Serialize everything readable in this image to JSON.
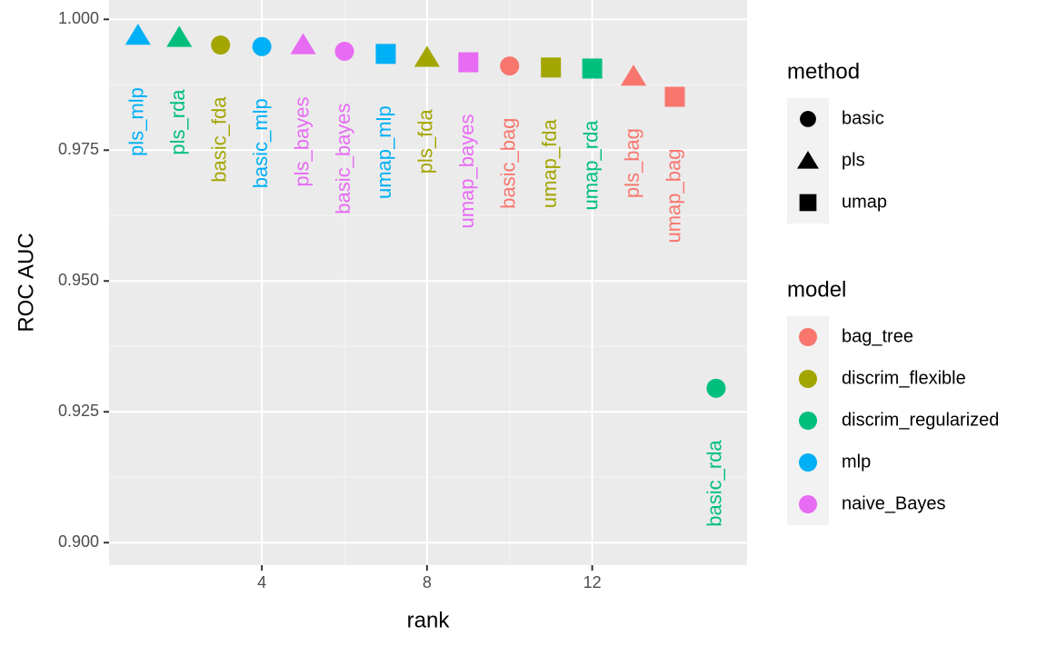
{
  "chart_data": {
    "type": "scatter",
    "x_label": "rank",
    "y_label": "ROC AUC",
    "xlim": [
      0.3,
      15.75
    ],
    "ylim": [
      0.8957,
      1.0037
    ],
    "xticks": [
      4,
      8,
      12
    ],
    "yticks": [
      {
        "value": 0.9,
        "label": "0.900"
      },
      {
        "value": 0.925,
        "label": "0.925"
      },
      {
        "value": 0.95,
        "label": "0.950"
      },
      {
        "value": 0.975,
        "label": "0.975"
      },
      {
        "value": 1,
        "label": "1.000"
      }
    ],
    "grid": true,
    "legends": [
      {
        "title": "method",
        "entries": [
          {
            "name": "basic",
            "shape": "circle"
          },
          {
            "name": "pls",
            "shape": "triangle"
          },
          {
            "name": "umap",
            "shape": "square"
          }
        ]
      },
      {
        "title": "model",
        "entries": [
          {
            "name": "bag_tree",
            "color": "#F8766D"
          },
          {
            "name": "discrim_flexible",
            "color": "#A3A500"
          },
          {
            "name": "discrim_regularized",
            "color": "#00BF7D"
          },
          {
            "name": "mlp",
            "color": "#00B0F6"
          },
          {
            "name": "naive_Bayes",
            "color": "#E76BF3"
          }
        ]
      }
    ],
    "points": [
      {
        "label": "pls_mlp",
        "method": "pls",
        "model": "mlp",
        "x": 1,
        "y": 0.9969
      },
      {
        "label": "pls_rda",
        "method": "pls",
        "model": "discrim_regularized",
        "x": 2,
        "y": 0.9965
      },
      {
        "label": "basic_fda",
        "method": "basic",
        "model": "discrim_flexible",
        "x": 3,
        "y": 0.9951
      },
      {
        "label": "basic_mlp",
        "method": "basic",
        "model": "mlp",
        "x": 4,
        "y": 0.9948
      },
      {
        "label": "pls_bayes",
        "method": "pls",
        "model": "naive_Bayes",
        "x": 5,
        "y": 0.9951
      },
      {
        "label": "basic_bayes",
        "method": "basic",
        "model": "naive_Bayes",
        "x": 6,
        "y": 0.9939
      },
      {
        "label": "umap_mlp",
        "method": "umap",
        "model": "mlp",
        "x": 7,
        "y": 0.9934
      },
      {
        "label": "pls_fda",
        "method": "pls",
        "model": "discrim_flexible",
        "x": 8,
        "y": 0.9927
      },
      {
        "label": "umap_bayes",
        "method": "umap",
        "model": "naive_Bayes",
        "x": 9,
        "y": 0.9918
      },
      {
        "label": "basic_bag",
        "method": "basic",
        "model": "bag_tree",
        "x": 10,
        "y": 0.9911
      },
      {
        "label": "umap_fda",
        "method": "umap",
        "model": "discrim_flexible",
        "x": 11,
        "y": 0.9908
      },
      {
        "label": "umap_rda",
        "method": "umap",
        "model": "discrim_regularized",
        "x": 12,
        "y": 0.9906
      },
      {
        "label": "pls_bag",
        "method": "pls",
        "model": "bag_tree",
        "x": 13,
        "y": 0.9891
      },
      {
        "label": "umap_bag",
        "method": "umap",
        "model": "bag_tree",
        "x": 14,
        "y": 0.9852
      },
      {
        "label": "basic_rda",
        "method": "basic",
        "model": "discrim_regularized",
        "x": 15,
        "y": 0.9295
      }
    ]
  }
}
